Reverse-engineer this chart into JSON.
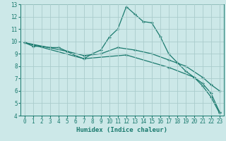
{
  "xlabel": "Humidex (Indice chaleur)",
  "xlim": [
    -0.5,
    23.5
  ],
  "ylim": [
    4,
    13
  ],
  "xticks": [
    0,
    1,
    2,
    3,
    4,
    5,
    6,
    7,
    8,
    9,
    10,
    11,
    12,
    13,
    14,
    15,
    16,
    17,
    18,
    19,
    20,
    21,
    22,
    23
  ],
  "yticks": [
    4,
    5,
    6,
    7,
    8,
    9,
    10,
    11,
    12,
    13
  ],
  "bg_color": "#cce8e8",
  "grid_color": "#aacccc",
  "line_color": "#1a7a6e",
  "lines": [
    {
      "x": [
        0,
        1,
        2,
        3,
        4,
        5,
        6,
        7,
        8,
        9,
        10,
        11,
        12,
        13,
        14,
        15,
        16,
        17,
        18,
        19,
        20,
        21,
        22,
        23
      ],
      "y": [
        9.9,
        9.6,
        9.6,
        9.5,
        9.5,
        9.2,
        8.85,
        8.6,
        9.0,
        9.3,
        10.35,
        11.0,
        12.8,
        12.2,
        11.6,
        11.5,
        10.4,
        9.0,
        8.3,
        7.6,
        7.1,
        6.4,
        5.5,
        4.2
      ]
    },
    {
      "x": [
        0,
        5,
        7,
        9,
        11,
        13,
        15,
        17,
        19,
        21,
        22,
        23
      ],
      "y": [
        9.9,
        9.2,
        8.85,
        9.0,
        9.5,
        9.3,
        9.0,
        8.5,
        8.0,
        7.1,
        6.5,
        6.0
      ]
    },
    {
      "x": [
        0,
        7,
        12,
        17,
        20,
        21,
        22,
        23
      ],
      "y": [
        9.9,
        8.6,
        8.9,
        7.9,
        7.1,
        6.6,
        5.8,
        4.3
      ]
    }
  ]
}
